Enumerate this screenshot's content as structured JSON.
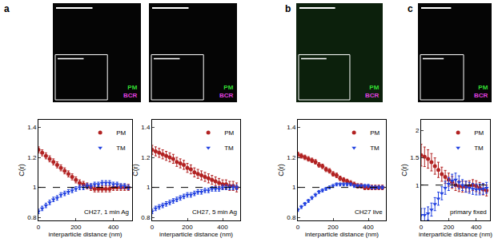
{
  "panels": [
    {
      "label": "a",
      "images": [
        {
          "channels": [
            {
              "text": "PM",
              "color": "#33dd33"
            },
            {
              "text": "BCR",
              "color": "#e040e0"
            }
          ]
        },
        {
          "channels": [
            {
              "text": "PM",
              "color": "#33dd33"
            },
            {
              "text": "BCR",
              "color": "#e040e0"
            }
          ]
        }
      ]
    },
    {
      "label": "b",
      "images": [
        {
          "channels": [
            {
              "text": "PM",
              "color": "#33dd33"
            },
            {
              "text": "BCR",
              "color": "#e040e0"
            }
          ]
        }
      ]
    },
    {
      "label": "c",
      "images": [
        {
          "channels": [
            {
              "text": "PM",
              "color": "#33dd33"
            },
            {
              "text": "BCR",
              "color": "#e040e0"
            }
          ]
        }
      ]
    }
  ],
  "chart_data": [
    {
      "type": "scatter",
      "annotation": "CH27, 1 min Ag",
      "x_label": "interparticle distance (nm)",
      "y_label": "C(r)",
      "x": [
        0,
        20,
        40,
        60,
        80,
        100,
        120,
        140,
        160,
        180,
        200,
        220,
        240,
        260,
        280,
        300,
        320,
        340,
        360,
        380,
        400,
        420,
        440,
        460,
        480
      ],
      "xlim": [
        0,
        500
      ],
      "xticks": [
        0,
        200,
        400
      ],
      "ylim": [
        0.78,
        1.45
      ],
      "yticks": [
        0.8,
        1,
        1.2,
        1.4
      ],
      "reference_line": {
        "value": 1,
        "line_style": "dashed"
      },
      "legend": "top right",
      "series": [
        {
          "name": "PM",
          "color": "#b22222",
          "marker": "circle",
          "values": [
            1.25,
            1.23,
            1.21,
            1.19,
            1.17,
            1.15,
            1.13,
            1.11,
            1.09,
            1.07,
            1.05,
            1.03,
            1.02,
            1.01,
            1.0,
            0.99,
            0.99,
            0.99,
            0.99,
            0.99,
            1.0,
            1.0,
            1.0,
            1.0,
            1.0
          ],
          "errors": [
            0.02,
            0.02,
            0.02,
            0.02,
            0.02,
            0.02,
            0.02,
            0.02,
            0.02,
            0.02,
            0.02,
            0.02,
            0.02,
            0.02,
            0.02,
            0.02,
            0.02,
            0.02,
            0.02,
            0.02,
            0.02,
            0.02,
            0.02,
            0.02,
            0.02
          ]
        },
        {
          "name": "TM",
          "color": "#2040e0",
          "marker": "triangle-down",
          "values": [
            0.84,
            0.86,
            0.88,
            0.9,
            0.92,
            0.93,
            0.95,
            0.96,
            0.97,
            0.98,
            0.99,
            1.0,
            1.0,
            1.01,
            1.01,
            1.02,
            1.02,
            1.03,
            1.03,
            1.03,
            1.02,
            1.02,
            1.01,
            1.01,
            1.0
          ],
          "errors": [
            0.015,
            0.015,
            0.015,
            0.015,
            0.015,
            0.015,
            0.015,
            0.015,
            0.015,
            0.015,
            0.015,
            0.015,
            0.015,
            0.015,
            0.015,
            0.015,
            0.015,
            0.015,
            0.015,
            0.015,
            0.015,
            0.015,
            0.015,
            0.015,
            0.015
          ]
        }
      ]
    },
    {
      "type": "scatter",
      "annotation": "CH27, 5 min Ag",
      "x_label": "interparticle distance (nm)",
      "y_label": "C(r)",
      "x": [
        0,
        20,
        40,
        60,
        80,
        100,
        120,
        140,
        160,
        180,
        200,
        220,
        240,
        260,
        280,
        300,
        320,
        340,
        360,
        380,
        400,
        420,
        440,
        460,
        480
      ],
      "xlim": [
        0,
        500
      ],
      "xticks": [
        0,
        200,
        400
      ],
      "ylim": [
        0.78,
        1.45
      ],
      "yticks": [
        0.8,
        1,
        1.2,
        1.4
      ],
      "reference_line": {
        "value": 1,
        "line_style": "dashed"
      },
      "legend": "top right",
      "series": [
        {
          "name": "PM",
          "color": "#b22222",
          "marker": "circle",
          "values": [
            1.25,
            1.24,
            1.23,
            1.22,
            1.21,
            1.2,
            1.19,
            1.17,
            1.16,
            1.15,
            1.13,
            1.12,
            1.1,
            1.09,
            1.08,
            1.07,
            1.06,
            1.05,
            1.04,
            1.03,
            1.02,
            1.02,
            1.01,
            1.01,
            1.0
          ],
          "errors": [
            0.03,
            0.03,
            0.03,
            0.03,
            0.03,
            0.03,
            0.03,
            0.03,
            0.03,
            0.03,
            0.03,
            0.03,
            0.03,
            0.03,
            0.03,
            0.03,
            0.03,
            0.03,
            0.03,
            0.03,
            0.03,
            0.03,
            0.03,
            0.03,
            0.03
          ]
        },
        {
          "name": "TM",
          "color": "#2040e0",
          "marker": "triangle-down",
          "values": [
            0.84,
            0.86,
            0.87,
            0.88,
            0.89,
            0.9,
            0.91,
            0.92,
            0.93,
            0.94,
            0.95,
            0.95,
            0.96,
            0.97,
            0.97,
            0.98,
            0.98,
            0.99,
            0.99,
            0.99,
            1.0,
            1.0,
            1.0,
            1.0,
            1.0
          ],
          "errors": [
            0.015,
            0.015,
            0.015,
            0.015,
            0.015,
            0.015,
            0.015,
            0.015,
            0.015,
            0.015,
            0.015,
            0.015,
            0.015,
            0.015,
            0.015,
            0.015,
            0.015,
            0.015,
            0.015,
            0.015,
            0.015,
            0.015,
            0.015,
            0.015,
            0.015
          ]
        }
      ]
    },
    {
      "type": "scatter",
      "annotation": "CH27 live",
      "x_label": "interparticle distance (nm)",
      "y_label": "C(r)",
      "x": [
        0,
        20,
        40,
        60,
        80,
        100,
        120,
        140,
        160,
        180,
        200,
        220,
        240,
        260,
        280,
        300,
        320,
        340,
        360,
        380,
        400,
        420,
        440,
        460,
        480
      ],
      "xlim": [
        0,
        500
      ],
      "xticks": [
        0,
        200,
        400
      ],
      "ylim": [
        0.78,
        1.45
      ],
      "yticks": [
        0.8,
        1,
        1.2,
        1.4
      ],
      "reference_line": {
        "value": 1,
        "line_style": "dashed"
      },
      "legend": "top right",
      "series": [
        {
          "name": "PM",
          "color": "#b22222",
          "marker": "circle",
          "values": [
            1.22,
            1.21,
            1.2,
            1.19,
            1.18,
            1.17,
            1.15,
            1.14,
            1.12,
            1.11,
            1.09,
            1.08,
            1.06,
            1.05,
            1.04,
            1.03,
            1.02,
            1.01,
            1.01,
            1.0,
            1.0,
            1.0,
            1.0,
            1.0,
            1.0
          ],
          "errors": [
            0.015,
            0.015,
            0.015,
            0.015,
            0.015,
            0.015,
            0.015,
            0.015,
            0.015,
            0.015,
            0.015,
            0.015,
            0.015,
            0.015,
            0.015,
            0.015,
            0.015,
            0.015,
            0.015,
            0.015,
            0.015,
            0.015,
            0.015,
            0.015,
            0.015
          ]
        },
        {
          "name": "TM",
          "color": "#2040e0",
          "marker": "triangle-down",
          "values": [
            0.85,
            0.87,
            0.89,
            0.91,
            0.93,
            0.95,
            0.97,
            0.98,
            0.99,
            1.0,
            1.01,
            1.02,
            1.02,
            1.02,
            1.02,
            1.02,
            1.01,
            1.01,
            1.01,
            1.01,
            1.01,
            1.0,
            1.0,
            1.0,
            1.0
          ],
          "errors": [
            0.01,
            0.01,
            0.01,
            0.01,
            0.01,
            0.01,
            0.01,
            0.01,
            0.01,
            0.01,
            0.01,
            0.01,
            0.01,
            0.01,
            0.01,
            0.01,
            0.01,
            0.01,
            0.01,
            0.01,
            0.01,
            0.01,
            0.01,
            0.01,
            0.01
          ]
        }
      ]
    },
    {
      "type": "scatter",
      "annotation": "primary fixed",
      "x_label": "interparticle distance (nm)",
      "y_label": "C(r)",
      "x": [
        0,
        25,
        50,
        75,
        100,
        125,
        150,
        175,
        200,
        225,
        250,
        275,
        300,
        325,
        350,
        375,
        400,
        425,
        450,
        475
      ],
      "xlim": [
        0,
        500
      ],
      "xticks": [
        0,
        200,
        400
      ],
      "ylim": [
        0.35,
        2.2
      ],
      "yticks": [
        1,
        1.5,
        2
      ],
      "reference_line": {
        "value": 1,
        "line_style": "dashed"
      },
      "legend": "top right",
      "series": [
        {
          "name": "PM",
          "color": "#b22222",
          "marker": "circle",
          "values": [
            1.55,
            1.52,
            1.48,
            1.42,
            1.35,
            1.28,
            1.2,
            1.15,
            1.1,
            1.05,
            1.0,
            0.98,
            0.97,
            0.97,
            0.98,
            1.0,
            0.98,
            0.95,
            0.92,
            0.9
          ],
          "errors": [
            0.2,
            0.18,
            0.17,
            0.16,
            0.15,
            0.14,
            0.13,
            0.12,
            0.12,
            0.11,
            0.1,
            0.1,
            0.1,
            0.1,
            0.1,
            0.1,
            0.1,
            0.1,
            0.1,
            0.1
          ]
        },
        {
          "name": "TM",
          "color": "#2040e0",
          "marker": "triangle-down",
          "values": [
            0.45,
            0.45,
            0.48,
            0.55,
            0.65,
            0.75,
            0.85,
            0.95,
            1.02,
            1.08,
            1.1,
            1.05,
            1.0,
            0.97,
            0.95,
            0.93,
            0.92,
            0.92,
            0.93,
            0.95
          ],
          "errors": [
            0.12,
            0.12,
            0.12,
            0.12,
            0.12,
            0.12,
            0.12,
            0.12,
            0.12,
            0.12,
            0.12,
            0.12,
            0.1,
            0.1,
            0.1,
            0.1,
            0.1,
            0.1,
            0.1,
            0.1
          ]
        }
      ]
    }
  ]
}
